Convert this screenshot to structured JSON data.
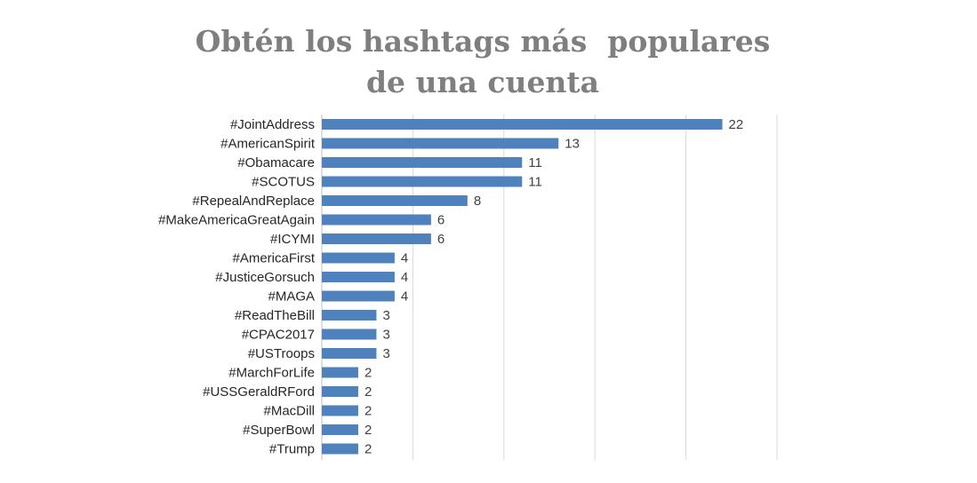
{
  "chart_data": {
    "type": "bar",
    "orientation": "horizontal",
    "title": "Obtén los hashtags más  populares\nde una cuenta",
    "categories": [
      "#JointAddress",
      "#AmericanSpirit",
      "#Obamacare",
      "#SCOTUS",
      "#RepealAndReplace",
      "#MakeAmericaGreatAgain",
      "#ICYMI",
      "#AmericaFirst",
      "#JusticeGorsuch",
      "#MAGA",
      "#ReadTheBill",
      "#CPAC2017",
      "#USTroops",
      "#MarchForLife",
      "#USSGeraldRFord",
      "#MacDill",
      "#SuperBowl",
      "#Trump"
    ],
    "values": [
      22,
      13,
      11,
      11,
      8,
      6,
      6,
      4,
      4,
      4,
      3,
      3,
      3,
      2,
      2,
      2,
      2,
      2
    ],
    "xlim": [
      0,
      25
    ],
    "grid": "vertical",
    "data_labels": true,
    "legend": "none",
    "bar_color": "#4f81bd"
  }
}
